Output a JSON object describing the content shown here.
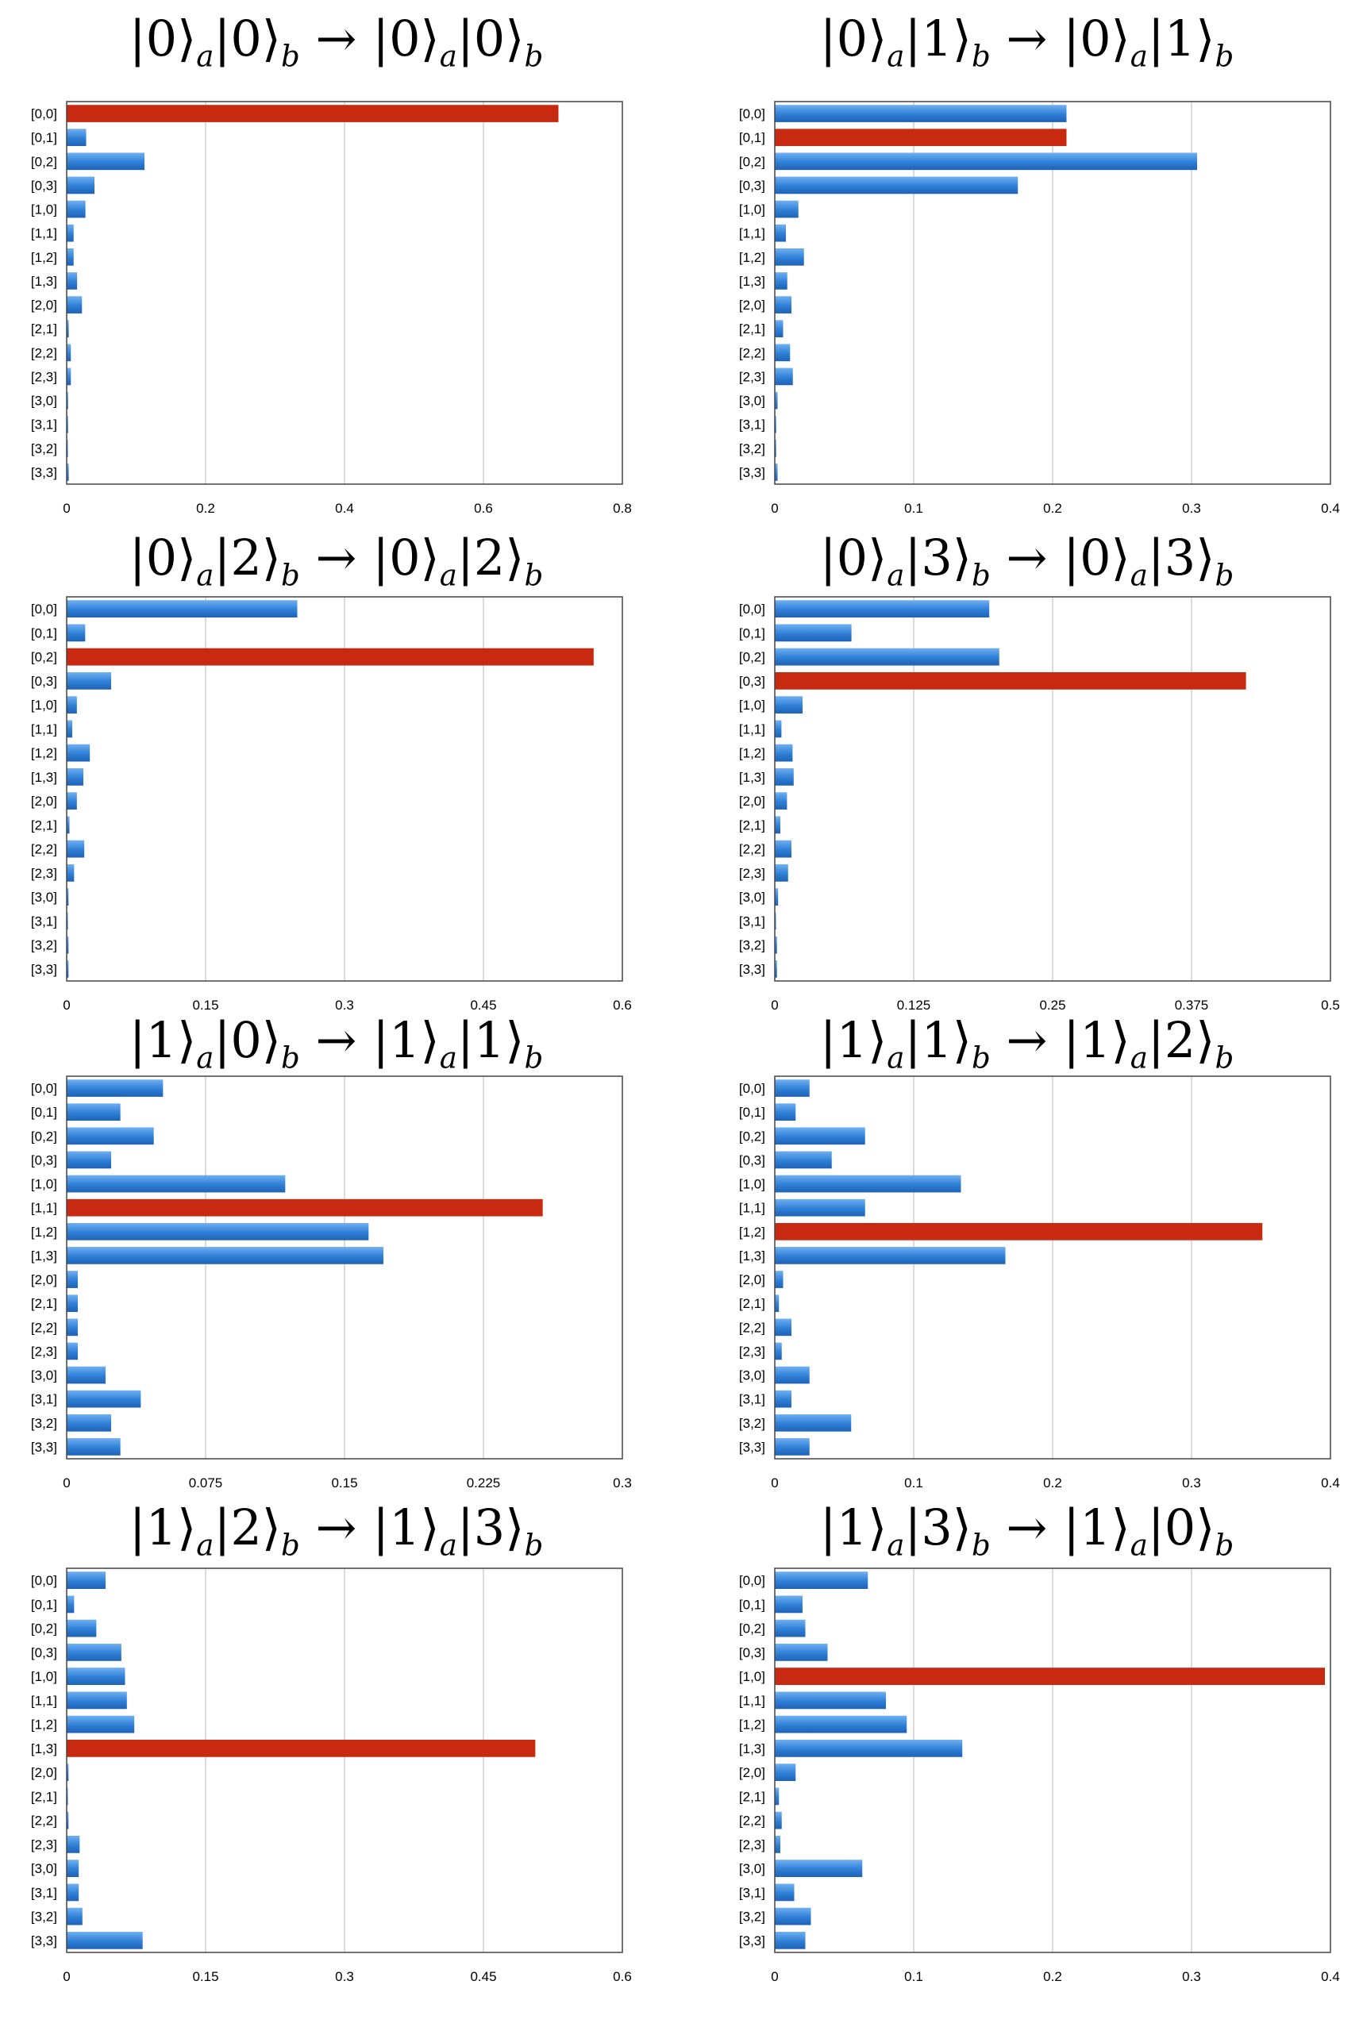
{
  "chart_data": [
    {
      "type": "bar",
      "orientation": "horizontal",
      "title_parts": [
        [
          "0",
          "a"
        ],
        [
          "0",
          "b"
        ],
        [
          "0",
          "a"
        ],
        [
          "0",
          "b"
        ]
      ],
      "categories": [
        "[0,0]",
        "[0,1]",
        "[0,2]",
        "[0,3]",
        "[1,0]",
        "[1,1]",
        "[1,2]",
        "[1,3]",
        "[2,0]",
        "[2,1]",
        "[2,2]",
        "[2,3]",
        "[3,0]",
        "[3,1]",
        "[3,2]",
        "[3,3]"
      ],
      "values": [
        0.708,
        0.028,
        0.112,
        0.04,
        0.027,
        0.01,
        0.01,
        0.015,
        0.022,
        0.003,
        0.006,
        0.006,
        0.002,
        0.002,
        0.001,
        0.003
      ],
      "highlight_index": 0,
      "xlim": [
        0,
        0.8
      ],
      "ticks": [
        0,
        0.2,
        0.4,
        0.6,
        0.8
      ],
      "tick_labels": [
        "0",
        "0.2",
        "0.4",
        "0.6",
        "0.8"
      ],
      "grid": true
    },
    {
      "type": "bar",
      "orientation": "horizontal",
      "title_parts": [
        [
          "0",
          "a"
        ],
        [
          "1",
          "b"
        ],
        [
          "0",
          "a"
        ],
        [
          "1",
          "b"
        ]
      ],
      "categories": [
        "[0,0]",
        "[0,1]",
        "[0,2]",
        "[0,3]",
        "[1,0]",
        "[1,1]",
        "[1,2]",
        "[1,3]",
        "[2,0]",
        "[2,1]",
        "[2,2]",
        "[2,3]",
        "[3,0]",
        "[3,1]",
        "[3,2]",
        "[3,3]"
      ],
      "values": [
        0.21,
        0.21,
        0.304,
        0.175,
        0.017,
        0.008,
        0.021,
        0.009,
        0.012,
        0.006,
        0.011,
        0.013,
        0.002,
        0.001,
        0.001,
        0.002
      ],
      "highlight_index": 1,
      "xlim": [
        0,
        0.4
      ],
      "ticks": [
        0,
        0.1,
        0.2,
        0.3,
        0.4
      ],
      "tick_labels": [
        "0",
        "0.1",
        "0.2",
        "0.3",
        "0.4"
      ],
      "grid": true
    },
    {
      "type": "bar",
      "orientation": "horizontal",
      "title_parts": [
        [
          "0",
          "a"
        ],
        [
          "2",
          "b"
        ],
        [
          "0",
          "a"
        ],
        [
          "2",
          "b"
        ]
      ],
      "categories": [
        "[0,0]",
        "[0,1]",
        "[0,2]",
        "[0,3]",
        "[1,0]",
        "[1,1]",
        "[1,2]",
        "[1,3]",
        "[2,0]",
        "[2,1]",
        "[2,2]",
        "[2,3]",
        "[3,0]",
        "[3,1]",
        "[3,2]",
        "[3,3]"
      ],
      "values": [
        0.249,
        0.02,
        0.569,
        0.048,
        0.011,
        0.006,
        0.025,
        0.018,
        0.011,
        0.003,
        0.019,
        0.008,
        0.002,
        0.001,
        0.002,
        0.002
      ],
      "highlight_index": 2,
      "xlim": [
        0,
        0.6
      ],
      "ticks": [
        0,
        0.15,
        0.3,
        0.45,
        0.6
      ],
      "tick_labels": [
        "0",
        "0.15",
        "0.3",
        "0.45",
        "0.6"
      ],
      "grid": true
    },
    {
      "type": "bar",
      "orientation": "horizontal",
      "title_parts": [
        [
          "0",
          "a"
        ],
        [
          "3",
          "b"
        ],
        [
          "0",
          "a"
        ],
        [
          "3",
          "b"
        ]
      ],
      "categories": [
        "[0,0]",
        "[0,1]",
        "[0,2]",
        "[0,3]",
        "[1,0]",
        "[1,1]",
        "[1,2]",
        "[1,3]",
        "[2,0]",
        "[2,1]",
        "[2,2]",
        "[2,3]",
        "[3,0]",
        "[3,1]",
        "[3,2]",
        "[3,3]"
      ],
      "values": [
        0.193,
        0.069,
        0.202,
        0.424,
        0.025,
        0.006,
        0.016,
        0.017,
        0.011,
        0.005,
        0.015,
        0.012,
        0.003,
        0.001,
        0.002,
        0.002
      ],
      "highlight_index": 3,
      "xlim": [
        0,
        0.5
      ],
      "ticks": [
        0,
        0.125,
        0.25,
        0.375,
        0.5
      ],
      "tick_labels": [
        "0",
        "0.125",
        "0.25",
        "0.375",
        "0.5"
      ],
      "grid": true
    },
    {
      "type": "bar",
      "orientation": "horizontal",
      "title_parts": [
        [
          "1",
          "a"
        ],
        [
          "0",
          "b"
        ],
        [
          "1",
          "a"
        ],
        [
          "1",
          "b"
        ]
      ],
      "categories": [
        "[0,0]",
        "[0,1]",
        "[0,2]",
        "[0,3]",
        "[1,0]",
        "[1,1]",
        "[1,2]",
        "[1,3]",
        "[2,0]",
        "[2,1]",
        "[2,2]",
        "[2,3]",
        "[3,0]",
        "[3,1]",
        "[3,2]",
        "[3,3]"
      ],
      "values": [
        0.052,
        0.029,
        0.047,
        0.024,
        0.118,
        0.257,
        0.163,
        0.171,
        0.006,
        0.006,
        0.006,
        0.006,
        0.021,
        0.04,
        0.024,
        0.029
      ],
      "highlight_index": 5,
      "xlim": [
        0,
        0.3
      ],
      "ticks": [
        0,
        0.075,
        0.15,
        0.225,
        0.3
      ],
      "tick_labels": [
        "0",
        "0.075",
        "0.15",
        "0.225",
        "0.3"
      ],
      "grid": true
    },
    {
      "type": "bar",
      "orientation": "horizontal",
      "title_parts": [
        [
          "1",
          "a"
        ],
        [
          "1",
          "b"
        ],
        [
          "1",
          "a"
        ],
        [
          "2",
          "b"
        ]
      ],
      "categories": [
        "[0,0]",
        "[0,1]",
        "[0,2]",
        "[0,3]",
        "[1,0]",
        "[1,1]",
        "[1,2]",
        "[1,3]",
        "[2,0]",
        "[2,1]",
        "[2,2]",
        "[2,3]",
        "[3,0]",
        "[3,1]",
        "[3,2]",
        "[3,3]"
      ],
      "values": [
        0.025,
        0.015,
        0.065,
        0.041,
        0.134,
        0.065,
        0.351,
        0.166,
        0.006,
        0.003,
        0.012,
        0.005,
        0.025,
        0.012,
        0.055,
        0.025
      ],
      "highlight_index": 6,
      "xlim": [
        0,
        0.4
      ],
      "ticks": [
        0,
        0.1,
        0.2,
        0.3,
        0.4
      ],
      "tick_labels": [
        "0",
        "0.1",
        "0.2",
        "0.3",
        "0.4"
      ],
      "grid": true
    },
    {
      "type": "bar",
      "orientation": "horizontal",
      "title_parts": [
        [
          "1",
          "a"
        ],
        [
          "2",
          "b"
        ],
        [
          "1",
          "a"
        ],
        [
          "3",
          "b"
        ]
      ],
      "categories": [
        "[0,0]",
        "[0,1]",
        "[0,2]",
        "[0,3]",
        "[1,0]",
        "[1,1]",
        "[1,2]",
        "[1,3]",
        "[2,0]",
        "[2,1]",
        "[2,2]",
        "[2,3]",
        "[3,0]",
        "[3,1]",
        "[3,2]",
        "[3,3]"
      ],
      "values": [
        0.042,
        0.008,
        0.032,
        0.059,
        0.063,
        0.065,
        0.073,
        0.506,
        0.002,
        0.001,
        0.002,
        0.014,
        0.013,
        0.013,
        0.017,
        0.082
      ],
      "highlight_index": 7,
      "xlim": [
        0,
        0.6
      ],
      "ticks": [
        0,
        0.15,
        0.3,
        0.45,
        0.6
      ],
      "tick_labels": [
        "0",
        "0.15",
        "0.3",
        "0.45",
        "0.6"
      ],
      "grid": true
    },
    {
      "type": "bar",
      "orientation": "horizontal",
      "title_parts": [
        [
          "1",
          "a"
        ],
        [
          "3",
          "b"
        ],
        [
          "1",
          "a"
        ],
        [
          "0",
          "b"
        ]
      ],
      "categories": [
        "[0,0]",
        "[0,1]",
        "[0,2]",
        "[0,3]",
        "[1,0]",
        "[1,1]",
        "[1,2]",
        "[1,3]",
        "[2,0]",
        "[2,1]",
        "[2,2]",
        "[2,3]",
        "[3,0]",
        "[3,1]",
        "[3,2]",
        "[3,3]"
      ],
      "values": [
        0.067,
        0.02,
        0.022,
        0.038,
        0.396,
        0.08,
        0.095,
        0.135,
        0.015,
        0.003,
        0.005,
        0.004,
        0.063,
        0.014,
        0.026,
        0.022
      ],
      "highlight_index": 4,
      "xlim": [
        0,
        0.4
      ],
      "ticks": [
        0,
        0.1,
        0.2,
        0.3,
        0.4
      ],
      "tick_labels": [
        "0",
        "0.1",
        "0.2",
        "0.3",
        "0.4"
      ],
      "grid": true
    }
  ],
  "colors": {
    "bar": "#2f7fd6",
    "bar_light": "#6fb0f2",
    "bar_dark": "#1e62b5",
    "highlight": "#c72a10",
    "grid": "#cfcfcf",
    "axis": "#444444",
    "text": "#000000"
  }
}
